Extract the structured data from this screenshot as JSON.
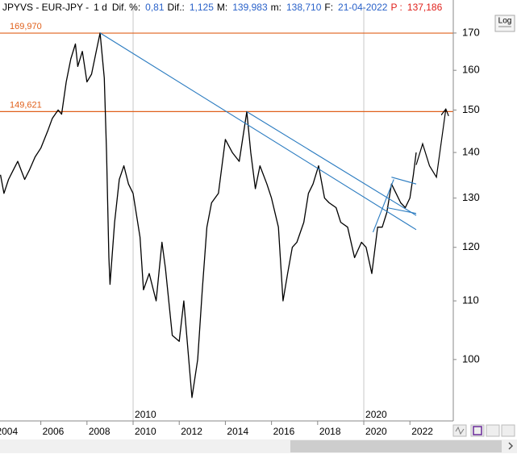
{
  "header": {
    "symbol": "JPYVS - EUR-JPY -",
    "period": "1 d",
    "items": [
      {
        "label": "Dif. %:",
        "value": "0,81"
      },
      {
        "label": "Dif.:",
        "value": "1,125"
      },
      {
        "label": "M:",
        "value": "139,983"
      },
      {
        "label": "m:",
        "value": "138,710"
      },
      {
        "label": "F:",
        "value": "21-04-2022"
      },
      {
        "label": "P :",
        "value": "137,186"
      }
    ],
    "log_button": "Log"
  },
  "chart_data": {
    "type": "line",
    "log_scale": true,
    "xlim": [
      2004.23,
      2023.88
    ],
    "ylim": [
      90.5,
      177.5
    ],
    "xticks": [
      2004,
      2006,
      2008,
      2010,
      2012,
      2014,
      2016,
      2018,
      2020,
      2022
    ],
    "yticks": [
      100,
      110,
      120,
      130,
      140,
      150,
      160,
      170
    ],
    "decade_markers": [
      2010,
      2020
    ],
    "series": [
      {
        "name": "EUR-JPY",
        "color": "#000000",
        "x": [
          2004.25,
          2004.4,
          2004.6,
          2004.8,
          2005.0,
          2005.3,
          2005.5,
          2005.75,
          2006.0,
          2006.3,
          2006.5,
          2006.75,
          2006.9,
          2007.1,
          2007.3,
          2007.5,
          2007.6,
          2007.8,
          2008.0,
          2008.2,
          2008.4,
          2008.57,
          2008.75,
          2008.85,
          2008.95,
          2009.0,
          2009.2,
          2009.4,
          2009.6,
          2009.8,
          2010.0,
          2010.3,
          2010.45,
          2010.7,
          2011.0,
          2011.25,
          2011.4,
          2011.7,
          2012.0,
          2012.2,
          2012.55,
          2012.8,
          2013.0,
          2013.2,
          2013.4,
          2013.7,
          2014.0,
          2014.3,
          2014.6,
          2014.93,
          2015.1,
          2015.3,
          2015.5,
          2015.8,
          2016.0,
          2016.3,
          2016.5,
          2016.7,
          2016.9,
          2017.1,
          2017.4,
          2017.6,
          2017.8,
          2018.04,
          2018.3,
          2018.5,
          2018.8,
          2019.0,
          2019.3,
          2019.6,
          2019.9,
          2020.1,
          2020.35,
          2020.6,
          2020.8,
          2021.0,
          2021.2,
          2021.4,
          2021.6,
          2021.8,
          2022.0,
          2022.15,
          2022.27
        ],
        "values": [
          135,
          131,
          134,
          136,
          138,
          134,
          136,
          139,
          141,
          145,
          148,
          150,
          149,
          157,
          163,
          167,
          161,
          165,
          157,
          159,
          165,
          170,
          158,
          140,
          118,
          113,
          125,
          134,
          137,
          133,
          131,
          122,
          112,
          115,
          110,
          121,
          116,
          104,
          103,
          110,
          94,
          100,
          112,
          124,
          129,
          131,
          143,
          140,
          138,
          149.6,
          140,
          132,
          137,
          133,
          130,
          124,
          110,
          115,
          120,
          121,
          125,
          131,
          133,
          137,
          130,
          129,
          128,
          125,
          124,
          118,
          121,
          120,
          115,
          124,
          124,
          127,
          133,
          131,
          129,
          128,
          130,
          135,
          140
        ]
      }
    ],
    "levels": [
      {
        "value": 169.97,
        "label": "169,970",
        "color": "#e0601b"
      },
      {
        "value": 149.621,
        "label": "149,621",
        "color": "#e0601b"
      }
    ],
    "trend_lines": [
      {
        "color": "#2a7bc0",
        "x": [
          2008.57,
          2022.27
        ],
        "y": [
          170,
          123.5
        ]
      },
      {
        "color": "#2a7bc0",
        "x": [
          2014.93,
          2022.27
        ],
        "y": [
          149.6,
          126.4
        ]
      },
      {
        "color": "#2a7bc0",
        "x": [
          2020.4,
          2021.3
        ],
        "y": [
          123,
          134
        ]
      },
      {
        "color": "#2a7bc0",
        "x": [
          2021.2,
          2022.27
        ],
        "y": [
          134.5,
          133
        ]
      },
      {
        "color": "#2a7bc0",
        "x": [
          2021.0,
          2022.27
        ],
        "y": [
          128,
          126.8
        ]
      }
    ],
    "forecast": {
      "color": "#000000",
      "x": [
        2022.27,
        2022.55,
        2022.85,
        2023.15,
        2023.55
      ],
      "y": [
        137.2,
        142,
        137,
        134.5,
        150
      ]
    }
  }
}
